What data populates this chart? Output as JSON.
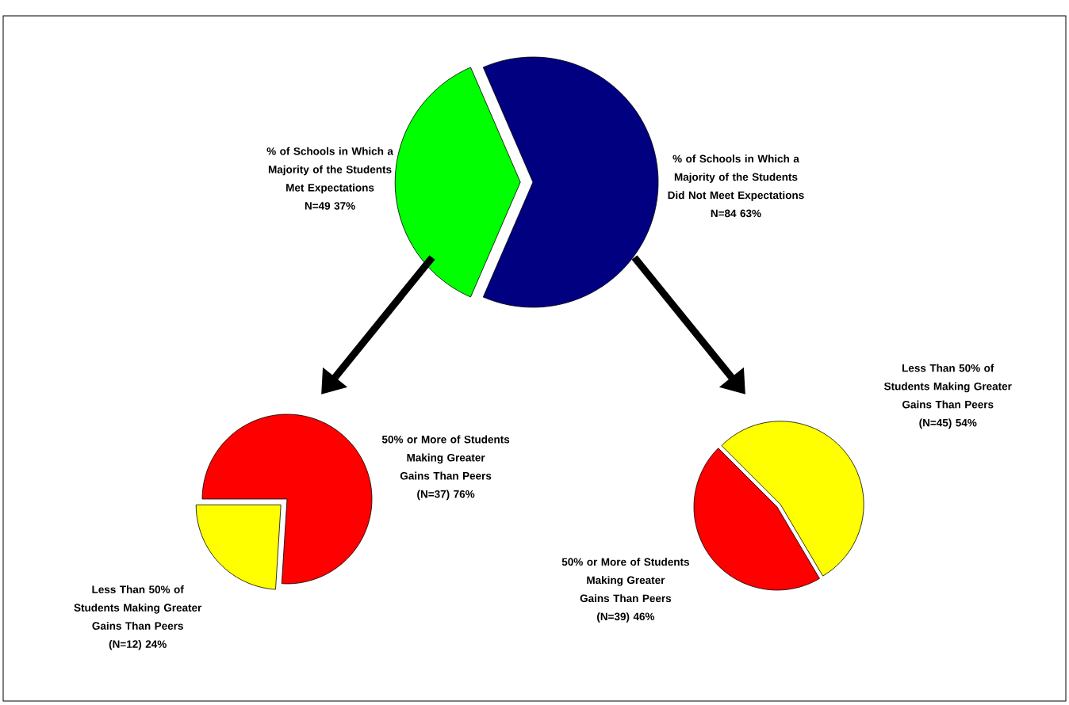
{
  "chart_data": [
    {
      "type": "pie",
      "categories": [
        "% of Schools in Which a Majority of the Students Met Expectations",
        "% of Schools in Which a Majority of the Students Did Not Meet Expectations"
      ],
      "values": [
        37,
        63
      ],
      "colors": [
        "#00ff00",
        "#000080"
      ],
      "value_labels": [
        "N=49 37%",
        "N=84 63%"
      ]
    },
    {
      "type": "pie",
      "categories": [
        "50% or More of Students Making Greater Gains Than Peers",
        "Less Than 50% of Students Making Greater Gains Than Peers"
      ],
      "values": [
        76,
        24
      ],
      "colors": [
        "#ff0000",
        "#ffff00"
      ],
      "value_labels": [
        "(N=37) 76%",
        "(N=12) 24%"
      ]
    },
    {
      "type": "pie",
      "categories": [
        "Less Than 50% of Students Making Greater Gains Than Peers",
        "50% or More of Students Making Greater Gains Than Peers"
      ],
      "values": [
        54,
        46
      ],
      "colors": [
        "#ffff00",
        "#ff0000"
      ],
      "value_labels": [
        "(N=45) 54%",
        "(N=39) 46%"
      ]
    }
  ]
}
